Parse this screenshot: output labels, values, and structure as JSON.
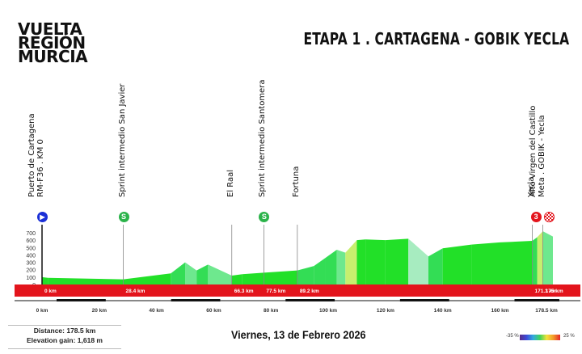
{
  "brand": {
    "line1": "VUELTA",
    "line2": "REGIÓN",
    "line3": "MURCIA"
  },
  "stage_title": "ETAPA 1 . CARTAGENA - GOBIK YECLA",
  "waypoints": [
    {
      "lines": [
        "Puerto de Cartagena",
        "RM-F36 . KM 0"
      ],
      "km": 0,
      "km_label": "0 km",
      "marker": "start"
    },
    {
      "lines": [
        "Sprint intermedio San Javier"
      ],
      "km": 28.4,
      "km_label": "28.4 km",
      "marker": "sprint"
    },
    {
      "lines": [
        "El Raal"
      ],
      "km": 66.3,
      "km_label": "66.3 km",
      "marker": ""
    },
    {
      "lines": [
        "Sprint intermedio Santomera"
      ],
      "km": 77.5,
      "km_label": "77.5 km",
      "marker": "sprint"
    },
    {
      "lines": [
        "Fortuna"
      ],
      "km": 89.2,
      "km_label": "89.2 km",
      "marker": ""
    },
    {
      "lines": [
        "Yecla"
      ],
      "km": 171.3,
      "km_label": "171.3 km",
      "marker": ""
    },
    {
      "lines": [
        "Alto Virgen del Castillo",
        "Meta . GOBIK - Yecla"
      ],
      "km": 175,
      "km_label": "175 km",
      "marker": "climb"
    }
  ],
  "markers": {
    "start": "▶",
    "sprint": "S",
    "climb": "3",
    "finish": "flag"
  },
  "y_ticks": [
    "700",
    "600",
    "500",
    "400",
    "300",
    "200",
    "100",
    "0"
  ],
  "x_ticks": [
    "0 km",
    "20 km",
    "40 km",
    "60 km",
    "80 km",
    "100 km",
    "120 km",
    "140 km",
    "160 km",
    "178.5 km"
  ],
  "distance": "Distance: 178.5 km",
  "elevation": "Elevation gain: 1,618 m",
  "date": "Viernes, 13 de Febrero 2026",
  "gradient_legend": {
    "min": "-35 %",
    "max": "25 %"
  },
  "chart_data": {
    "type": "area",
    "x": [
      0,
      2,
      28.4,
      45,
      50,
      54,
      58,
      66.3,
      70,
      77.5,
      89.2,
      95,
      99,
      103,
      106,
      110,
      113,
      120,
      128,
      135,
      140,
      150,
      160,
      171.3,
      173,
      175,
      178.5
    ],
    "y": [
      100,
      90,
      70,
      150,
      300,
      190,
      270,
      120,
      140,
      160,
      190,
      250,
      360,
      470,
      430,
      600,
      610,
      600,
      620,
      380,
      490,
      540,
      570,
      590,
      640,
      720,
      650
    ],
    "xlabel": "",
    "ylabel": "",
    "xlim": [
      0,
      178.5
    ],
    "ylim": [
      0,
      700
    ]
  }
}
